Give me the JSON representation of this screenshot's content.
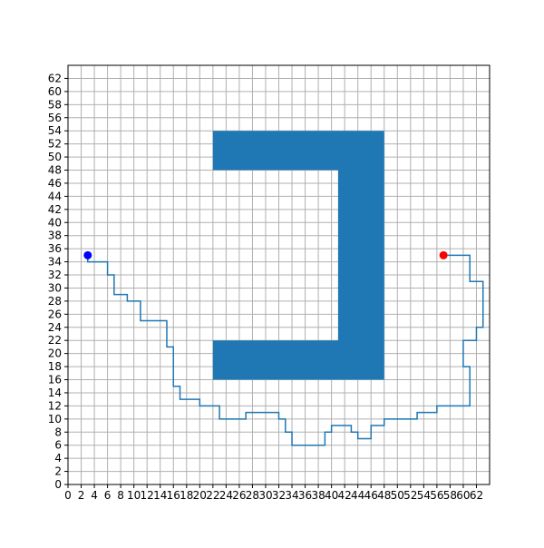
{
  "chart_data": {
    "type": "line",
    "xlim": [
      0,
      64
    ],
    "ylim": [
      0,
      64
    ],
    "x_ticks": [
      0,
      2,
      4,
      6,
      8,
      10,
      12,
      14,
      16,
      18,
      20,
      22,
      24,
      26,
      28,
      30,
      32,
      34,
      36,
      38,
      40,
      42,
      44,
      46,
      48,
      50,
      52,
      54,
      56,
      58,
      60,
      62
    ],
    "y_ticks": [
      0,
      2,
      4,
      6,
      8,
      10,
      12,
      14,
      16,
      18,
      20,
      22,
      24,
      26,
      28,
      30,
      32,
      34,
      36,
      38,
      40,
      42,
      44,
      46,
      48,
      50,
      52,
      54,
      56,
      58,
      60,
      62
    ],
    "grid": true,
    "obstacle": {
      "color": "#1f77b4",
      "polygon": [
        [
          22,
          54
        ],
        [
          48,
          54
        ],
        [
          48,
          16
        ],
        [
          22,
          16
        ],
        [
          22,
          22
        ],
        [
          41,
          22
        ],
        [
          41,
          48
        ],
        [
          22,
          48
        ]
      ]
    },
    "path": {
      "color": "#1f77b4",
      "points": [
        [
          3,
          35
        ],
        [
          3,
          34
        ],
        [
          6,
          34
        ],
        [
          6,
          32
        ],
        [
          7,
          32
        ],
        [
          7,
          29
        ],
        [
          9,
          29
        ],
        [
          9,
          28
        ],
        [
          11,
          28
        ],
        [
          11,
          25
        ],
        [
          15,
          25
        ],
        [
          15,
          21
        ],
        [
          16,
          21
        ],
        [
          16,
          15
        ],
        [
          17,
          15
        ],
        [
          17,
          13
        ],
        [
          20,
          13
        ],
        [
          20,
          12
        ],
        [
          23,
          12
        ],
        [
          23,
          10
        ],
        [
          27,
          10
        ],
        [
          27,
          11
        ],
        [
          32,
          11
        ],
        [
          32,
          10
        ],
        [
          33,
          10
        ],
        [
          33,
          8
        ],
        [
          34,
          8
        ],
        [
          34,
          6
        ],
        [
          39,
          6
        ],
        [
          39,
          8
        ],
        [
          40,
          8
        ],
        [
          40,
          9
        ],
        [
          43,
          9
        ],
        [
          43,
          8
        ],
        [
          44,
          8
        ],
        [
          44,
          7
        ],
        [
          46,
          7
        ],
        [
          46,
          9
        ],
        [
          48,
          9
        ],
        [
          48,
          10
        ],
        [
          53,
          10
        ],
        [
          53,
          11
        ],
        [
          56,
          11
        ],
        [
          56,
          12
        ],
        [
          61,
          12
        ],
        [
          61,
          18
        ],
        [
          60,
          18
        ],
        [
          60,
          22
        ],
        [
          62,
          22
        ],
        [
          62,
          24
        ],
        [
          63,
          24
        ],
        [
          63,
          31
        ],
        [
          61,
          31
        ],
        [
          61,
          35
        ],
        [
          57,
          35
        ]
      ]
    },
    "start_point": {
      "x": 3,
      "y": 35,
      "color": "#0000ff"
    },
    "goal_point": {
      "x": 57,
      "y": 35,
      "color": "#ff0000"
    },
    "colors": {
      "grid": "#b0b0b0",
      "axes": "#000000"
    }
  }
}
